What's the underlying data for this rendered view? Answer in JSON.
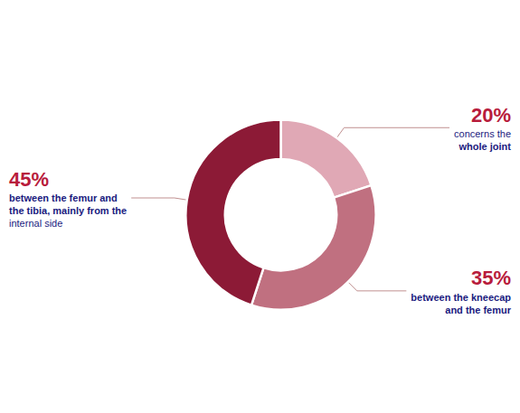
{
  "chart_data": {
    "type": "pie",
    "categories": [
      "concerns the\nwhole joint",
      "between the kneecap\nand the femur",
      "between the femur and\nthe tibia, mainly from the\ninternal side"
    ],
    "values": [
      20,
      35,
      45
    ],
    "value_labels": [
      "20%",
      "35%",
      "45%"
    ],
    "data_labels": true,
    "colors": [
      "#e0a8b5",
      "#c07080",
      "#8c1a36"
    ]
  }
}
